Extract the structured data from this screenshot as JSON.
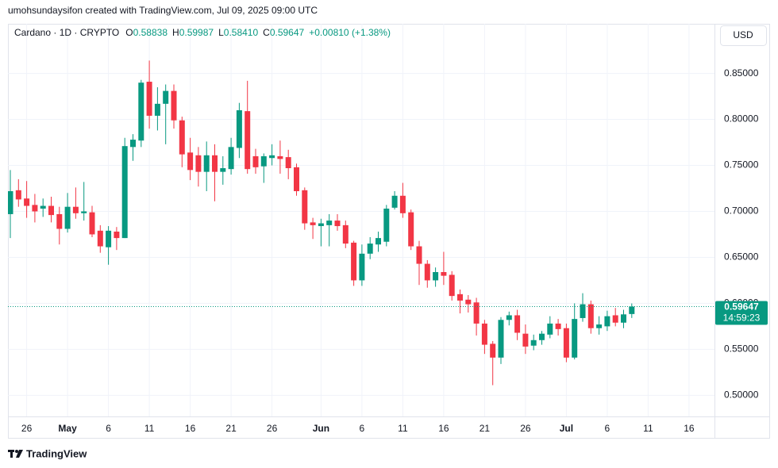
{
  "header": "umohsundaysifon created with TradingView.com, Jul 09, 2025 09:00 UTC",
  "currency": "USD",
  "branding": "TradingView",
  "chart_data": {
    "type": "candlestick",
    "title": "Cardano · 1D · CRYPTO",
    "legend_items": [
      {
        "key": "O",
        "value": "0.58838"
      },
      {
        "key": "H",
        "value": "0.59987"
      },
      {
        "key": "L",
        "value": "0.58410"
      },
      {
        "key": "C",
        "value": "0.59647"
      }
    ],
    "change": "+0.00810 (+1.38%)",
    "countdown": "14:59:23",
    "up_color": "#089981",
    "down_color": "#f23645",
    "grid": true,
    "x": [
      "2025-04-24",
      "2025-04-25",
      "2025-04-26",
      "2025-04-27",
      "2025-04-28",
      "2025-04-29",
      "2025-04-30",
      "2025-05-01",
      "2025-05-02",
      "2025-05-03",
      "2025-05-04",
      "2025-05-05",
      "2025-05-06",
      "2025-05-07",
      "2025-05-08",
      "2025-05-09",
      "2025-05-10",
      "2025-05-11",
      "2025-05-12",
      "2025-05-13",
      "2025-05-14",
      "2025-05-15",
      "2025-05-16",
      "2025-05-17",
      "2025-05-18",
      "2025-05-19",
      "2025-05-20",
      "2025-05-21",
      "2025-05-22",
      "2025-05-23",
      "2025-05-24",
      "2025-05-25",
      "2025-05-26",
      "2025-05-27",
      "2025-05-28",
      "2025-05-29",
      "2025-05-30",
      "2025-05-31",
      "2025-06-01",
      "2025-06-02",
      "2025-06-03",
      "2025-06-04",
      "2025-06-05",
      "2025-06-06",
      "2025-06-07",
      "2025-06-08",
      "2025-06-09",
      "2025-06-10",
      "2025-06-11",
      "2025-06-12",
      "2025-06-13",
      "2025-06-14",
      "2025-06-15",
      "2025-06-16",
      "2025-06-17",
      "2025-06-18",
      "2025-06-19",
      "2025-06-20",
      "2025-06-21",
      "2025-06-22",
      "2025-06-23",
      "2025-06-24",
      "2025-06-25",
      "2025-06-26",
      "2025-06-27",
      "2025-06-28",
      "2025-06-29",
      "2025-06-30",
      "2025-07-01",
      "2025-07-02",
      "2025-07-03",
      "2025-07-04",
      "2025-07-05",
      "2025-07-06",
      "2025-07-07",
      "2025-07-08",
      "2025-07-09"
    ],
    "open": [
      0.697,
      0.723,
      0.714,
      0.707,
      0.703,
      0.706,
      0.697,
      0.681,
      0.705,
      0.698,
      0.699,
      0.679,
      0.661,
      0.678,
      0.671,
      0.77,
      0.777,
      0.841,
      0.804,
      0.817,
      0.831,
      0.799,
      0.764,
      0.761,
      0.743,
      0.761,
      0.743,
      0.746,
      0.769,
      0.809,
      0.76,
      0.749,
      0.758,
      0.76,
      0.759,
      0.748,
      0.723,
      0.688,
      0.684,
      0.685,
      0.69,
      0.685,
      0.666,
      0.625,
      0.654,
      0.664,
      0.667,
      0.704,
      0.717,
      0.699,
      0.662,
      0.643,
      0.625,
      0.634,
      0.631,
      0.61,
      0.604,
      0.601,
      0.578,
      0.556,
      0.541,
      0.582,
      0.587,
      0.567,
      0.554,
      0.56,
      0.566,
      0.578,
      0.573,
      0.541,
      0.584,
      0.599,
      0.573,
      0.575,
      0.587,
      0.579,
      0.58838
    ],
    "high": [
      0.745,
      0.735,
      0.733,
      0.719,
      0.714,
      0.716,
      0.705,
      0.72,
      0.726,
      0.732,
      0.706,
      0.685,
      0.684,
      0.683,
      0.78,
      0.784,
      0.843,
      0.864,
      0.835,
      0.838,
      0.838,
      0.803,
      0.78,
      0.77,
      0.776,
      0.773,
      0.76,
      0.78,
      0.818,
      0.842,
      0.768,
      0.763,
      0.773,
      0.777,
      0.767,
      0.752,
      0.726,
      0.693,
      0.692,
      0.697,
      0.697,
      0.69,
      0.668,
      0.664,
      0.672,
      0.678,
      0.707,
      0.722,
      0.731,
      0.702,
      0.668,
      0.647,
      0.639,
      0.656,
      0.635,
      0.615,
      0.609,
      0.606,
      0.582,
      0.559,
      0.585,
      0.591,
      0.593,
      0.577,
      0.566,
      0.57,
      0.586,
      0.583,
      0.578,
      0.6,
      0.611,
      0.603,
      0.586,
      0.592,
      0.595,
      0.593,
      0.59987
    ],
    "low": [
      0.671,
      0.705,
      0.693,
      0.688,
      0.694,
      0.688,
      0.664,
      0.677,
      0.692,
      0.69,
      0.672,
      0.655,
      0.642,
      0.658,
      0.671,
      0.755,
      0.77,
      0.79,
      0.788,
      0.773,
      0.79,
      0.748,
      0.734,
      0.727,
      0.722,
      0.711,
      0.729,
      0.74,
      0.758,
      0.741,
      0.741,
      0.731,
      0.75,
      0.741,
      0.735,
      0.717,
      0.68,
      0.67,
      0.662,
      0.662,
      0.679,
      0.66,
      0.619,
      0.619,
      0.648,
      0.656,
      0.662,
      0.702,
      0.693,
      0.658,
      0.62,
      0.617,
      0.618,
      0.62,
      0.603,
      0.589,
      0.59,
      0.565,
      0.545,
      0.511,
      0.534,
      0.576,
      0.56,
      0.545,
      0.549,
      0.555,
      0.562,
      0.565,
      0.536,
      0.539,
      0.58,
      0.567,
      0.566,
      0.57,
      0.575,
      0.573,
      0.5841
    ],
    "close": [
      0.722,
      0.713,
      0.706,
      0.7,
      0.706,
      0.696,
      0.681,
      0.705,
      0.698,
      0.7,
      0.675,
      0.662,
      0.679,
      0.671,
      0.771,
      0.778,
      0.84,
      0.804,
      0.817,
      0.831,
      0.799,
      0.762,
      0.745,
      0.743,
      0.761,
      0.743,
      0.747,
      0.77,
      0.81,
      0.746,
      0.748,
      0.76,
      0.761,
      0.757,
      0.747,
      0.722,
      0.687,
      0.685,
      0.687,
      0.69,
      0.684,
      0.665,
      0.625,
      0.654,
      0.665,
      0.671,
      0.703,
      0.717,
      0.698,
      0.662,
      0.643,
      0.625,
      0.634,
      0.63,
      0.608,
      0.603,
      0.599,
      0.578,
      0.555,
      0.541,
      0.582,
      0.587,
      0.568,
      0.553,
      0.56,
      0.567,
      0.578,
      0.572,
      0.541,
      0.583,
      0.599,
      0.573,
      0.577,
      0.586,
      0.579,
      0.588,
      0.59647
    ],
    "xlim": [
      "2025-04-23",
      "2025-07-19"
    ],
    "xticks": [
      {
        "value": "2025-04-26",
        "label": "26"
      },
      {
        "value": "2025-05-01",
        "label": "May"
      },
      {
        "value": "2025-05-06",
        "label": "6"
      },
      {
        "value": "2025-05-11",
        "label": "11"
      },
      {
        "value": "2025-05-16",
        "label": "16"
      },
      {
        "value": "2025-05-21",
        "label": "21"
      },
      {
        "value": "2025-05-26",
        "label": "26"
      },
      {
        "value": "2025-06-01",
        "label": "Jun"
      },
      {
        "value": "2025-06-06",
        "label": "6"
      },
      {
        "value": "2025-06-11",
        "label": "11"
      },
      {
        "value": "2025-06-16",
        "label": "16"
      },
      {
        "value": "2025-06-21",
        "label": "21"
      },
      {
        "value": "2025-06-26",
        "label": "26"
      },
      {
        "value": "2025-07-01",
        "label": "Jul"
      },
      {
        "value": "2025-07-06",
        "label": "6"
      },
      {
        "value": "2025-07-11",
        "label": "11"
      },
      {
        "value": "2025-07-16",
        "label": "16"
      }
    ],
    "ylim": [
      0.477,
      0.904
    ],
    "yticks": [
      {
        "value": 0.5,
        "label": "0.50000"
      },
      {
        "value": 0.55,
        "label": "0.55000"
      },
      {
        "value": 0.6,
        "label": "0.60000"
      },
      {
        "value": 0.65,
        "label": "0.65000"
      },
      {
        "value": 0.7,
        "label": "0.70000"
      },
      {
        "value": 0.75,
        "label": "0.75000"
      },
      {
        "value": 0.8,
        "label": "0.80000"
      },
      {
        "value": 0.85,
        "label": "0.85000"
      }
    ]
  }
}
